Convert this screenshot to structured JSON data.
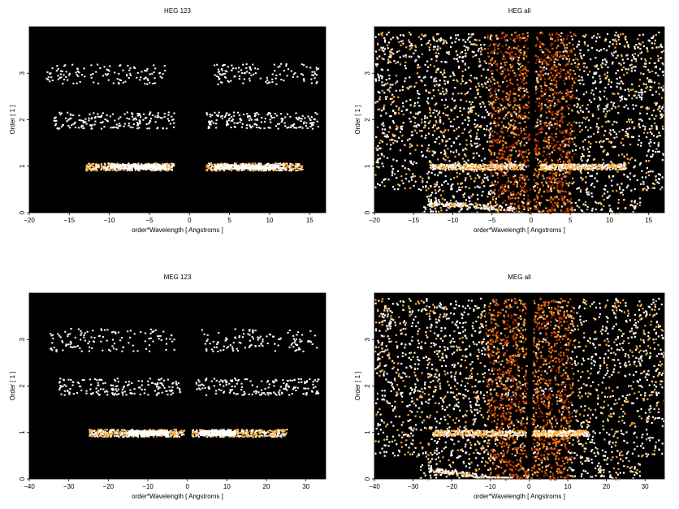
{
  "chart_data": [
    {
      "type": "heatmap",
      "title": "HEG 123",
      "xlabel": "order*Wavelength [ Angstroms ]",
      "ylabel": "Order [ 1 ]",
      "xlim": [
        -20,
        17
      ],
      "ylim": [
        0,
        4
      ],
      "xticks": [
        -20,
        -15,
        -10,
        -5,
        0,
        5,
        10,
        15
      ],
      "yticks": [
        0,
        1,
        2,
        3
      ],
      "grid": false,
      "legend": "none",
      "background_color": "#000000",
      "colormap": [
        "#000000",
        "#5a0a00",
        "#a02800",
        "#e06010",
        "#ffb040",
        "#ffffff"
      ],
      "bands": [
        {
          "order": 1,
          "x_ranges": [
            [
              -13,
              -2
            ],
            [
              2,
              14
            ]
          ],
          "bright_ranges": [
            [
              -10,
              -3
            ],
            [
              3,
              11
            ]
          ],
          "y_spread": 0.08,
          "density": "high"
        },
        {
          "order": 2,
          "x_ranges": [
            [
              -17,
              -2
            ],
            [
              2,
              16
            ]
          ],
          "y_spread": 0.18,
          "density": "medium"
        },
        {
          "order": 3,
          "x_ranges": [
            [
              -18,
              -3
            ],
            [
              3,
              16
            ]
          ],
          "y_spread": 0.22,
          "density": "low"
        }
      ]
    },
    {
      "type": "heatmap",
      "title": "HEG all",
      "xlabel": "order*Wavelength [ Angstroms ]",
      "ylabel": "Order [ 1 ]",
      "xlim": [
        -20,
        17
      ],
      "ylim": [
        0,
        4
      ],
      "xticks": [
        -20,
        -15,
        -10,
        -5,
        0,
        5,
        10,
        15
      ],
      "yticks": [
        0,
        1,
        2,
        3
      ],
      "grid": false,
      "legend": "none",
      "background_color": "#000000",
      "colormap": [
        "#000000",
        "#5a0a00",
        "#a02800",
        "#e06010",
        "#ffb040",
        "#ffffff"
      ],
      "coverage": "full-field noise with V-shaped gap around 0 and dense orange wedges along the order boundaries",
      "bands": [
        {
          "order": 1,
          "x_ranges": [
            [
              -13,
              -1
            ],
            [
              1,
              12
            ]
          ],
          "y_spread": 0.06,
          "density": "high"
        }
      ]
    },
    {
      "type": "heatmap",
      "title": "MEG 123",
      "xlabel": "order*Wavelength [ Angstroms ]",
      "ylabel": "Order [ 1 ]",
      "xlim": [
        -40,
        35
      ],
      "ylim": [
        0,
        4
      ],
      "xticks": [
        -40,
        -30,
        -20,
        -10,
        0,
        10,
        20,
        30
      ],
      "yticks": [
        0,
        1,
        2,
        3
      ],
      "grid": false,
      "legend": "none",
      "background_color": "#000000",
      "colormap": [
        "#000000",
        "#5a0a00",
        "#a02800",
        "#e06010",
        "#ffb040",
        "#ffffff"
      ],
      "bands": [
        {
          "order": 1,
          "x_ranges": [
            [
              -25,
              -1
            ],
            [
              1,
              25
            ]
          ],
          "bright_ranges": [
            [
              -15,
              -5
            ],
            [
              3,
              12
            ]
          ],
          "y_spread": 0.08,
          "density": "high"
        },
        {
          "order": 2,
          "x_ranges": [
            [
              -33,
              -2
            ],
            [
              2,
              33
            ]
          ],
          "y_spread": 0.18,
          "density": "medium"
        },
        {
          "order": 3,
          "x_ranges": [
            [
              -35,
              -3
            ],
            [
              3,
              33
            ]
          ],
          "y_spread": 0.25,
          "density": "low"
        }
      ]
    },
    {
      "type": "heatmap",
      "title": "MEG all",
      "xlabel": "order*Wavelength [ Angstroms ]",
      "ylabel": "Order [ 1 ]",
      "xlim": [
        -40,
        35
      ],
      "ylim": [
        0,
        4
      ],
      "xticks": [
        -40,
        -30,
        -20,
        -10,
        0,
        10,
        20,
        30
      ],
      "yticks": [
        0,
        1,
        2,
        3
      ],
      "grid": false,
      "legend": "none",
      "background_color": "#000000",
      "colormap": [
        "#000000",
        "#5a0a00",
        "#a02800",
        "#e06010",
        "#ffb040",
        "#ffffff"
      ],
      "coverage": "full-field noise with V-shaped gap around 0 and dense orange wedges along the order boundaries",
      "bands": [
        {
          "order": 1,
          "x_ranges": [
            [
              -25,
              -1
            ],
            [
              1,
              15
            ]
          ],
          "y_spread": 0.06,
          "density": "high"
        }
      ]
    }
  ]
}
